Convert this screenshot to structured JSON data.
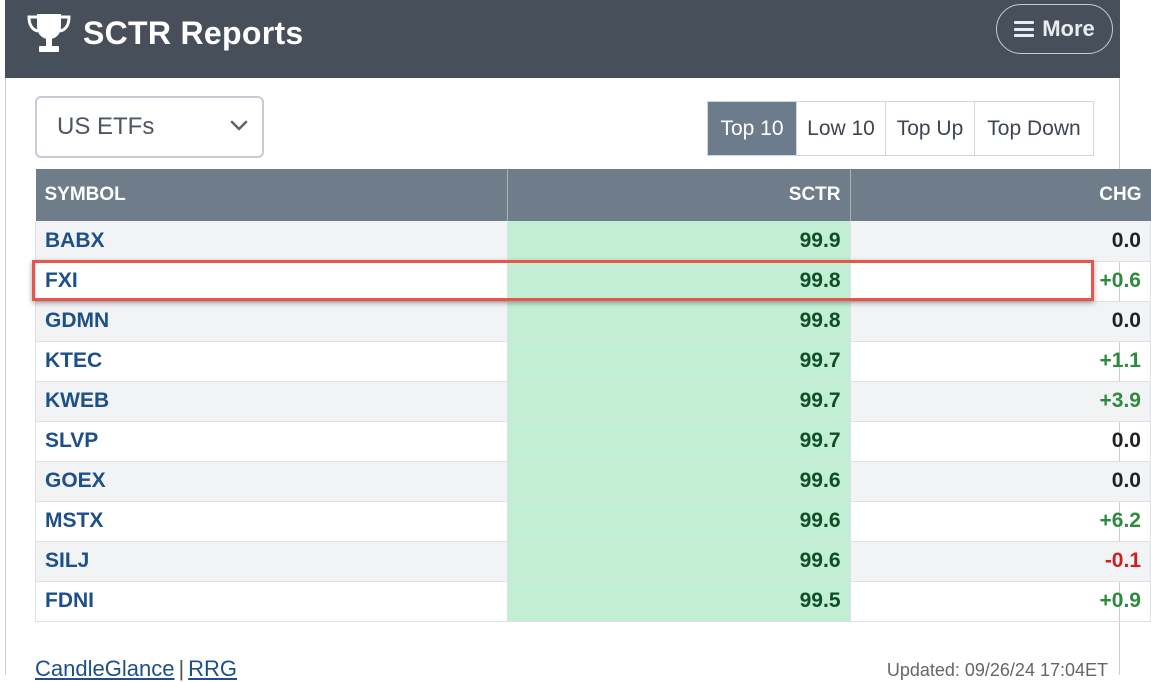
{
  "header": {
    "title": "SCTR Reports",
    "more_label": "More"
  },
  "universe_select": {
    "value": "US ETFs"
  },
  "tabs": [
    {
      "label": "Top 10",
      "active": true
    },
    {
      "label": "Low 10",
      "active": false
    },
    {
      "label": "Top Up",
      "active": false
    },
    {
      "label": "Top Down",
      "active": false
    }
  ],
  "table": {
    "columns": [
      "SYMBOL",
      "SCTR",
      "CHG"
    ],
    "rows": [
      {
        "symbol": "BABX",
        "sctr": "99.9",
        "chg": "0.0"
      },
      {
        "symbol": "FXI",
        "sctr": "99.8",
        "chg": "+0.6"
      },
      {
        "symbol": "GDMN",
        "sctr": "99.8",
        "chg": "0.0"
      },
      {
        "symbol": "KTEC",
        "sctr": "99.7",
        "chg": "+1.1"
      },
      {
        "symbol": "KWEB",
        "sctr": "99.7",
        "chg": "+3.9"
      },
      {
        "symbol": "SLVP",
        "sctr": "99.7",
        "chg": "0.0"
      },
      {
        "symbol": "GOEX",
        "sctr": "99.6",
        "chg": "0.0"
      },
      {
        "symbol": "MSTX",
        "sctr": "99.6",
        "chg": "+6.2"
      },
      {
        "symbol": "SILJ",
        "sctr": "99.6",
        "chg": "-0.1"
      },
      {
        "symbol": "FDNI",
        "sctr": "99.5",
        "chg": "+0.9"
      }
    ],
    "highlighted_symbol": "FXI"
  },
  "footer": {
    "link_candleglance": "CandleGlance",
    "separator": "|",
    "link_rrg": "RRG",
    "updated": "Updated: 09/26/24 17:04ET"
  },
  "colors": {
    "header_bg": "#474f5a",
    "table_header_bg": "#6f7d8b",
    "sctr_cell_bg": "#c2efd4",
    "positive": "#2e8a3f",
    "negative": "#cc1f1f",
    "highlight_border": "#e8554a"
  },
  "icons": {
    "brand": "trophy-icon",
    "menu": "hamburger-menu-icon",
    "select": "chevron-down-icon"
  }
}
